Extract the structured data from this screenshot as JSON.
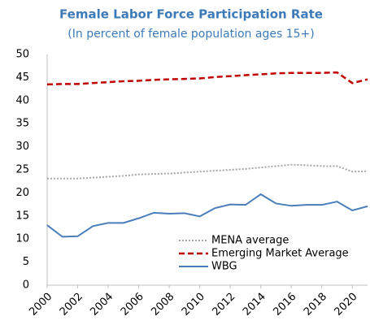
{
  "chart_data": {
    "type": "line",
    "title": "Female Labor Force Participation Rate",
    "subtitle": "(In percent of female population ages 15+)",
    "x": [
      2000,
      2001,
      2002,
      2003,
      2004,
      2005,
      2006,
      2007,
      2008,
      2009,
      2010,
      2011,
      2012,
      2013,
      2014,
      2015,
      2016,
      2017,
      2018,
      2019,
      2020,
      2021
    ],
    "series": [
      {
        "name": "MENA average",
        "color": "#a6a6a6",
        "dash": "dotted",
        "values": [
          23.1,
          23.1,
          23.1,
          23.3,
          23.5,
          23.7,
          24.0,
          24.1,
          24.2,
          24.4,
          24.6,
          24.8,
          25.0,
          25.2,
          25.5,
          25.8,
          26.1,
          26.0,
          25.8,
          25.8,
          24.6,
          24.7
        ]
      },
      {
        "name": "Emerging Market Average",
        "color": "#c00000",
        "dash": "dashed",
        "values": [
          43.5,
          43.6,
          43.6,
          43.8,
          44.0,
          44.2,
          44.3,
          44.5,
          44.6,
          44.7,
          44.8,
          45.1,
          45.3,
          45.5,
          45.7,
          45.9,
          46.0,
          46.0,
          46.0,
          46.1,
          43.8,
          44.6
        ]
      },
      {
        "name": "WBG",
        "color": "#4a7ebb",
        "dash": "solid",
        "values": [
          13.0,
          10.5,
          10.6,
          12.8,
          13.5,
          13.5,
          14.5,
          15.7,
          15.5,
          15.6,
          14.9,
          16.7,
          17.5,
          17.4,
          19.7,
          17.7,
          17.2,
          17.4,
          17.4,
          18.1,
          16.2,
          17.1
        ]
      }
    ],
    "xlim": [
      2000,
      2021
    ],
    "xticks": [
      2000,
      2002,
      2004,
      2006,
      2008,
      2010,
      2012,
      2014,
      2016,
      2018,
      2020
    ],
    "ylim": [
      0,
      50
    ],
    "yticks": [
      0,
      5,
      10,
      15,
      20,
      25,
      30,
      35,
      40,
      45,
      50
    ],
    "grid": false,
    "legend": "lower right"
  }
}
